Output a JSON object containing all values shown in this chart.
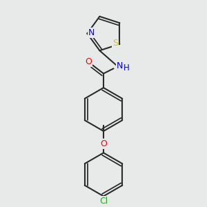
{
  "bg_color": "#e8eaea",
  "bond_color": "#2a2a2a",
  "bond_width": 1.5,
  "atom_colors": {
    "O": "#ff0000",
    "N": "#0000ee",
    "S": "#cccc00",
    "Cl": "#22aa22",
    "H": "#0000ee"
  },
  "font_size": 8.5,
  "fig_size": [
    3.0,
    3.0
  ],
  "dpi": 100
}
